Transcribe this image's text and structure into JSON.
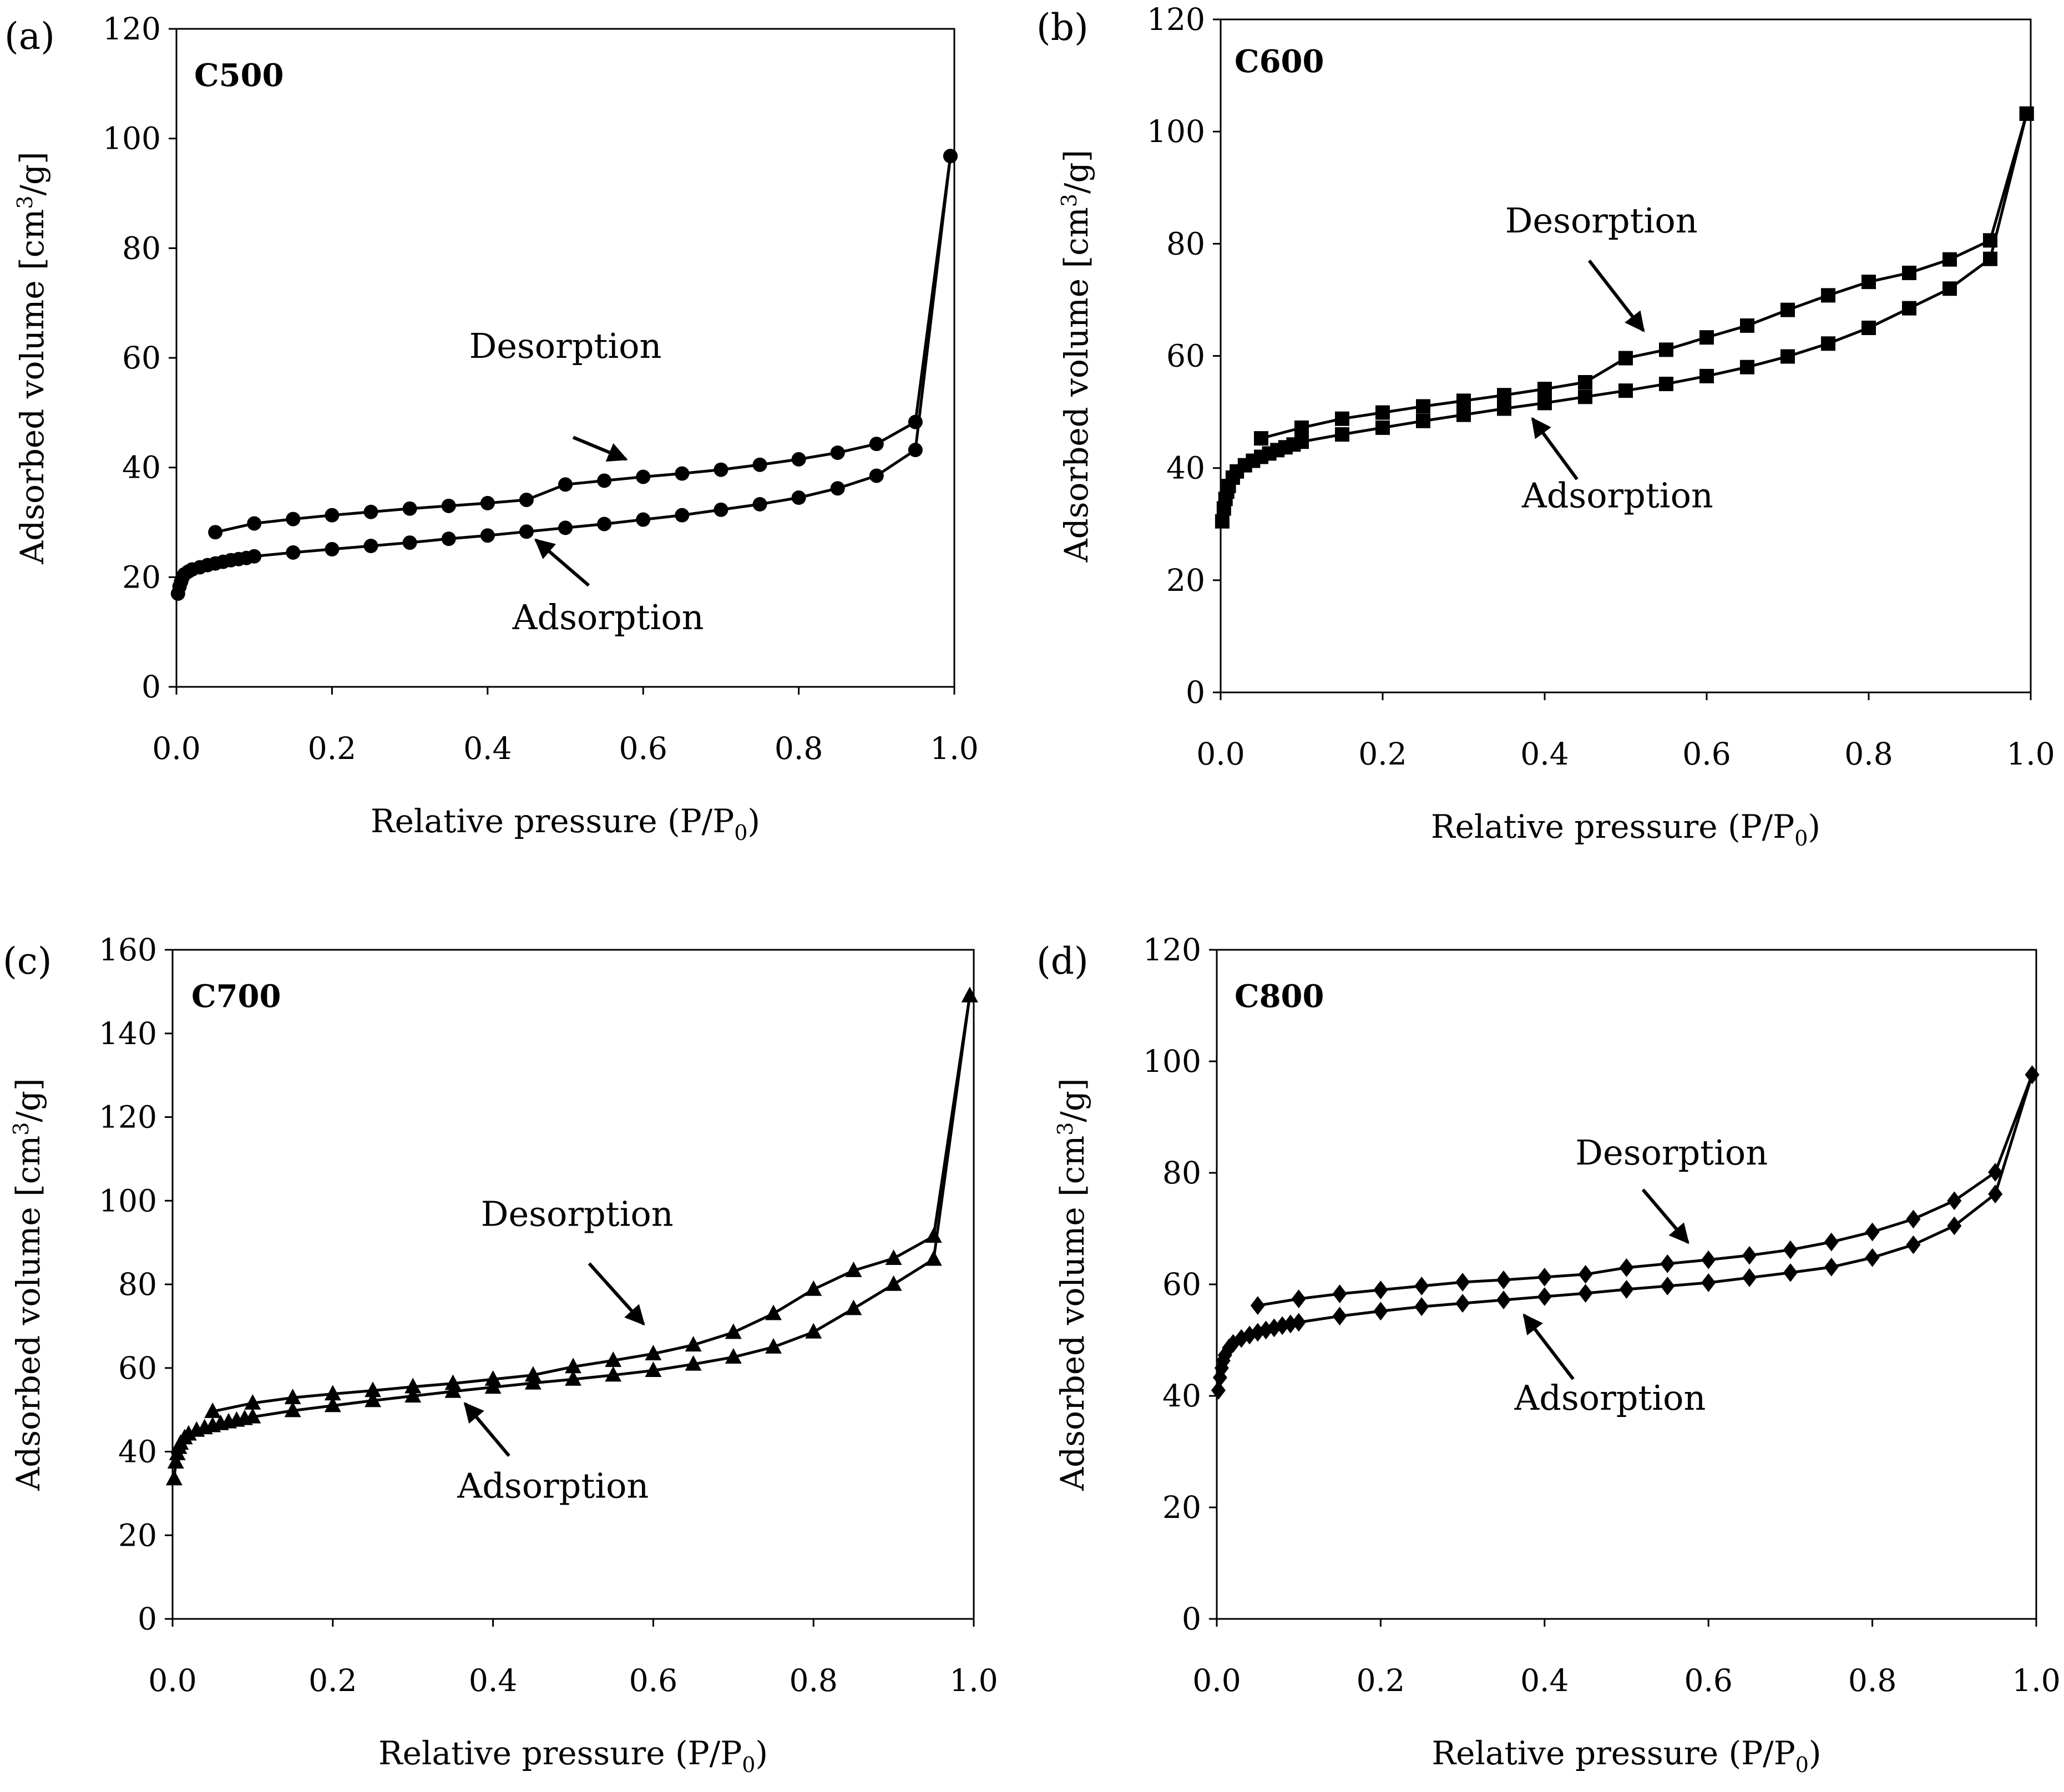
{
  "figure": {
    "marker_color": "#000000",
    "line_color": "#000000",
    "background": "#ffffff"
  },
  "chart_data": [
    {
      "type": "line",
      "panel": "(a)",
      "title": "C500",
      "marker": "circle",
      "xlabel": "Relative pressure (P/P",
      "xlabel_sub": "0",
      "xlabel_end": ")",
      "ylabel": "Adsorbed volume [cm",
      "ylabel_sup": "3",
      "ylabel_end": "/g]",
      "xlim": [
        0,
        1.0
      ],
      "ylim": [
        0,
        120
      ],
      "xticks": [
        0,
        0.2,
        0.4,
        0.6,
        0.8,
        1.0
      ],
      "xtick_labels": [
        "0.0",
        "0.2",
        "0.4",
        "0.6",
        "0.8",
        "1.0"
      ],
      "yticks": [
        0,
        20,
        40,
        60,
        80,
        100,
        120
      ],
      "ytick_labels": [
        "0",
        "20",
        "40",
        "60",
        "80",
        "100",
        "120"
      ],
      "annotations": [
        {
          "text": "Desorption",
          "text_at": [
            0.5,
            60
          ],
          "arrow_from": [
            0.51,
            45.5
          ],
          "arrow_to": [
            0.578,
            41.5
          ]
        },
        {
          "text": "Adsorption",
          "text_at": [
            0.555,
            10.5
          ],
          "arrow_from": [
            0.53,
            18.5
          ],
          "arrow_to": [
            0.462,
            26.8
          ]
        }
      ],
      "series": [
        {
          "name": "Adsorption",
          "x": [
            0.002,
            0.004,
            0.006,
            0.008,
            0.01,
            0.015,
            0.02,
            0.03,
            0.04,
            0.05,
            0.06,
            0.07,
            0.08,
            0.09,
            0.1,
            0.15,
            0.2,
            0.25,
            0.3,
            0.35,
            0.4,
            0.45,
            0.5,
            0.55,
            0.6,
            0.65,
            0.7,
            0.75,
            0.8,
            0.85,
            0.9,
            0.95,
            0.995
          ],
          "y": [
            17.0,
            18.3,
            19.2,
            20.0,
            20.5,
            21.0,
            21.4,
            21.8,
            22.2,
            22.5,
            22.8,
            23.1,
            23.3,
            23.5,
            23.8,
            24.5,
            25.1,
            25.7,
            26.3,
            27.0,
            27.6,
            28.3,
            29.0,
            29.7,
            30.5,
            31.3,
            32.3,
            33.3,
            34.5,
            36.2,
            38.5,
            43.2,
            96.8
          ]
        },
        {
          "name": "Desorption",
          "x": [
            0.995,
            0.95,
            0.9,
            0.85,
            0.8,
            0.75,
            0.7,
            0.65,
            0.6,
            0.55,
            0.5,
            0.45,
            0.4,
            0.35,
            0.3,
            0.25,
            0.2,
            0.15,
            0.1,
            0.05
          ],
          "y": [
            96.8,
            48.3,
            44.3,
            42.7,
            41.5,
            40.5,
            39.6,
            38.9,
            38.3,
            37.6,
            36.9,
            34.1,
            33.5,
            33.0,
            32.5,
            31.9,
            31.3,
            30.6,
            29.8,
            28.2
          ]
        }
      ]
    },
    {
      "type": "line",
      "panel": "(b)",
      "title": "C600",
      "marker": "square",
      "xlabel": "Relative pressure (P/P",
      "xlabel_sub": "0",
      "xlabel_end": ")",
      "ylabel": "Adsorbed volume [cm",
      "ylabel_sup": "3",
      "ylabel_end": "/g]",
      "xlim": [
        0,
        1.0
      ],
      "ylim": [
        0,
        120
      ],
      "xticks": [
        0,
        0.2,
        0.4,
        0.6,
        0.8,
        1.0
      ],
      "xtick_labels": [
        "0.0",
        "0.2",
        "0.4",
        "0.6",
        "0.8",
        "1.0"
      ],
      "yticks": [
        0,
        20,
        40,
        60,
        80,
        100,
        120
      ],
      "ytick_labels": [
        "0",
        "20",
        "40",
        "60",
        "80",
        "100",
        "120"
      ],
      "annotations": [
        {
          "text": "Desorption",
          "text_at": [
            0.47,
            82
          ],
          "arrow_from": [
            0.455,
            77
          ],
          "arrow_to": [
            0.522,
            64.5
          ]
        },
        {
          "text": "Adsorption",
          "text_at": [
            0.49,
            33
          ],
          "arrow_from": [
            0.44,
            38
          ],
          "arrow_to": [
            0.385,
            48.8
          ]
        }
      ],
      "series": [
        {
          "name": "Adsorption",
          "x": [
            0.002,
            0.004,
            0.006,
            0.008,
            0.01,
            0.015,
            0.02,
            0.03,
            0.04,
            0.05,
            0.06,
            0.07,
            0.08,
            0.09,
            0.1,
            0.15,
            0.2,
            0.25,
            0.3,
            0.35,
            0.4,
            0.45,
            0.5,
            0.55,
            0.6,
            0.65,
            0.7,
            0.75,
            0.8,
            0.85,
            0.9,
            0.95,
            0.995
          ],
          "y": [
            30.5,
            32.8,
            34.5,
            35.8,
            36.8,
            38.3,
            39.4,
            40.5,
            41.3,
            42.0,
            42.6,
            43.2,
            43.7,
            44.2,
            44.7,
            46.0,
            47.2,
            48.4,
            49.5,
            50.6,
            51.6,
            52.7,
            53.8,
            55.0,
            56.4,
            58.0,
            59.9,
            62.2,
            65.0,
            68.5,
            72.0,
            77.3,
            103.2
          ]
        },
        {
          "name": "Desorption",
          "x": [
            0.995,
            0.95,
            0.9,
            0.85,
            0.8,
            0.75,
            0.7,
            0.65,
            0.6,
            0.55,
            0.5,
            0.45,
            0.4,
            0.35,
            0.3,
            0.25,
            0.2,
            0.15,
            0.1,
            0.05
          ],
          "y": [
            103.2,
            80.6,
            77.2,
            74.8,
            73.2,
            70.8,
            68.2,
            65.4,
            63.3,
            61.1,
            59.6,
            55.3,
            54.1,
            53.0,
            52.0,
            51.0,
            49.9,
            48.8,
            47.2,
            45.3
          ]
        }
      ]
    },
    {
      "type": "line",
      "panel": "(c)",
      "title": "C700",
      "marker": "triangle",
      "xlabel": "Relative pressure (P/P",
      "xlabel_sub": "0",
      "xlabel_end": ")",
      "ylabel": "Adsorbed volume [cm",
      "ylabel_sup": "3",
      "ylabel_end": "/g]",
      "xlim": [
        0,
        1.0
      ],
      "ylim": [
        0,
        160
      ],
      "xticks": [
        0,
        0.2,
        0.4,
        0.6,
        0.8,
        1.0
      ],
      "xtick_labels": [
        "0.0",
        "0.2",
        "0.4",
        "0.6",
        "0.8",
        "1.0"
      ],
      "yticks": [
        0,
        20,
        40,
        60,
        80,
        100,
        120,
        140,
        160
      ],
      "ytick_labels": [
        "0",
        "20",
        "40",
        "60",
        "80",
        "100",
        "120",
        "140",
        "160"
      ],
      "annotations": [
        {
          "text": "Desorption",
          "text_at": [
            0.505,
            94
          ],
          "arrow_from": [
            0.52,
            85
          ],
          "arrow_to": [
            0.588,
            70.5
          ]
        },
        {
          "text": "Adsorption",
          "text_at": [
            0.475,
            29
          ],
          "arrow_from": [
            0.42,
            39
          ],
          "arrow_to": [
            0.365,
            51.5
          ]
        }
      ],
      "series": [
        {
          "name": "Adsorption",
          "x": [
            0.002,
            0.004,
            0.006,
            0.008,
            0.01,
            0.015,
            0.02,
            0.03,
            0.04,
            0.05,
            0.06,
            0.07,
            0.08,
            0.09,
            0.1,
            0.15,
            0.2,
            0.25,
            0.3,
            0.35,
            0.4,
            0.45,
            0.5,
            0.55,
            0.6,
            0.65,
            0.7,
            0.75,
            0.8,
            0.85,
            0.9,
            0.95,
            0.995
          ],
          "y": [
            33.5,
            37.5,
            39.5,
            41.0,
            42.0,
            43.3,
            44.2,
            45.1,
            45.7,
            46.2,
            46.7,
            47.1,
            47.5,
            47.9,
            48.3,
            49.8,
            51.0,
            52.2,
            53.3,
            54.4,
            55.4,
            56.4,
            57.3,
            58.3,
            59.4,
            60.9,
            62.6,
            65.0,
            68.6,
            74.2,
            80.0,
            86.0,
            149.0
          ]
        },
        {
          "name": "Desorption",
          "x": [
            0.995,
            0.95,
            0.9,
            0.85,
            0.8,
            0.75,
            0.7,
            0.65,
            0.6,
            0.55,
            0.5,
            0.45,
            0.4,
            0.35,
            0.3,
            0.25,
            0.2,
            0.15,
            0.1,
            0.05
          ],
          "y": [
            149.0,
            91.5,
            86.2,
            83.3,
            78.8,
            73.0,
            68.5,
            65.5,
            63.4,
            61.8,
            60.3,
            58.3,
            57.3,
            56.3,
            55.5,
            54.6,
            53.8,
            52.9,
            51.6,
            49.6
          ]
        }
      ]
    },
    {
      "type": "line",
      "panel": "(d)",
      "title": "C800",
      "marker": "diamond",
      "xlabel": "Relative pressure (P/P",
      "xlabel_sub": "0",
      "xlabel_end": ")",
      "ylabel": "Adsorbed volume [cm",
      "ylabel_sup": "3",
      "ylabel_end": "/g]",
      "xlim": [
        0,
        1.0
      ],
      "ylim": [
        0,
        120
      ],
      "xticks": [
        0,
        0.2,
        0.4,
        0.6,
        0.8,
        1.0
      ],
      "xtick_labels": [
        "0.0",
        "0.2",
        "0.4",
        "0.6",
        "0.8",
        "1.0"
      ],
      "yticks": [
        0,
        20,
        40,
        60,
        80,
        100,
        120
      ],
      "ytick_labels": [
        "0",
        "20",
        "40",
        "60",
        "80",
        "100",
        "120"
      ],
      "annotations": [
        {
          "text": "Desorption",
          "text_at": [
            0.555,
            81.5
          ],
          "arrow_from": [
            0.52,
            77
          ],
          "arrow_to": [
            0.575,
            67.5
          ]
        },
        {
          "text": "Adsorption",
          "text_at": [
            0.48,
            37.5
          ],
          "arrow_from": [
            0.435,
            43
          ],
          "arrow_to": [
            0.375,
            54.5
          ]
        }
      ],
      "series": [
        {
          "name": "Adsorption",
          "x": [
            0.002,
            0.004,
            0.006,
            0.008,
            0.01,
            0.015,
            0.02,
            0.03,
            0.04,
            0.05,
            0.06,
            0.07,
            0.08,
            0.09,
            0.1,
            0.15,
            0.2,
            0.25,
            0.3,
            0.35,
            0.4,
            0.45,
            0.5,
            0.55,
            0.6,
            0.65,
            0.7,
            0.75,
            0.8,
            0.85,
            0.9,
            0.95,
            0.995
          ],
          "y": [
            41.0,
            43.3,
            45.0,
            46.3,
            47.3,
            48.6,
            49.4,
            50.3,
            50.9,
            51.4,
            51.8,
            52.2,
            52.6,
            52.9,
            53.2,
            54.3,
            55.2,
            56.0,
            56.6,
            57.2,
            57.8,
            58.4,
            59.1,
            59.7,
            60.3,
            61.2,
            62.1,
            63.1,
            64.8,
            67.1,
            70.5,
            76.2,
            97.6
          ]
        },
        {
          "name": "Desorption",
          "x": [
            0.995,
            0.95,
            0.9,
            0.85,
            0.8,
            0.75,
            0.7,
            0.65,
            0.6,
            0.55,
            0.5,
            0.45,
            0.4,
            0.35,
            0.3,
            0.25,
            0.2,
            0.15,
            0.1,
            0.05
          ],
          "y": [
            97.6,
            80.1,
            75.0,
            71.7,
            69.4,
            67.6,
            66.2,
            65.2,
            64.4,
            63.7,
            63.0,
            61.8,
            61.3,
            60.8,
            60.4,
            59.7,
            59.0,
            58.3,
            57.4,
            56.2
          ]
        }
      ]
    }
  ]
}
